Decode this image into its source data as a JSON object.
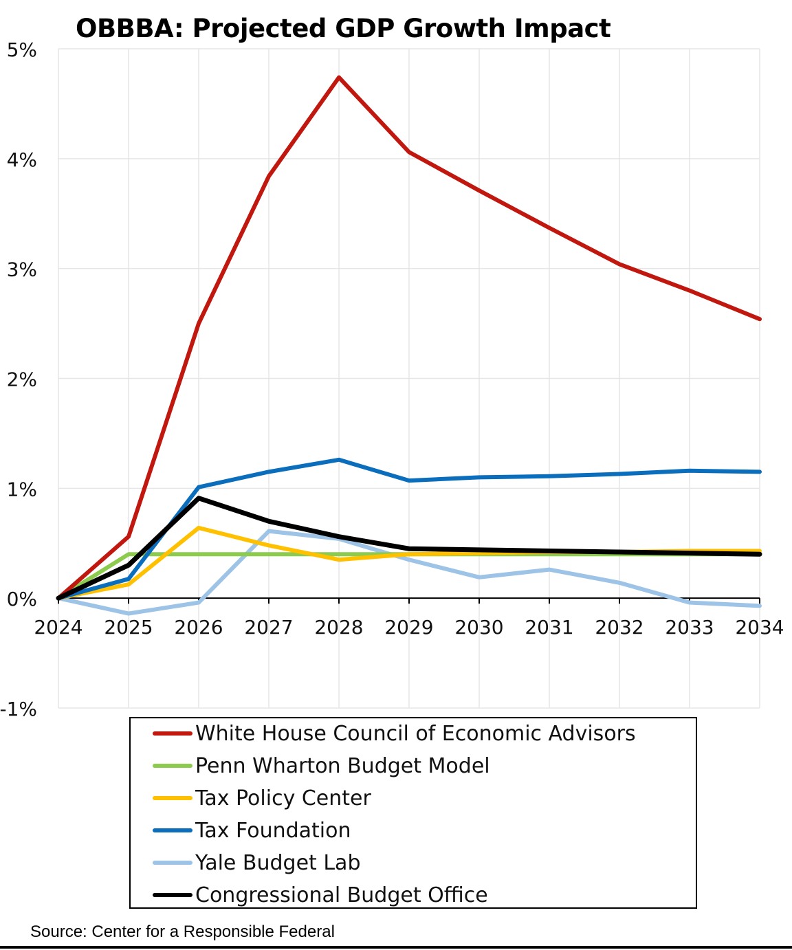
{
  "chart_data": {
    "type": "line",
    "title": "OBBBA: Projected GDP Growth Impact",
    "xlabel": "",
    "ylabel": "",
    "x": [
      2024,
      2025,
      2026,
      2027,
      2028,
      2029,
      2030,
      2031,
      2032,
      2033,
      2034
    ],
    "x_tick_labels": [
      "2024",
      "2025",
      "2026",
      "2027",
      "2028",
      "2029",
      "2030",
      "2031",
      "2032",
      "2033",
      "2034"
    ],
    "ylim": [
      -1,
      5
    ],
    "y_ticks": [
      -1,
      0,
      1,
      2,
      3,
      4,
      5
    ],
    "y_tick_labels": [
      "-1%",
      "0%",
      "1%",
      "2%",
      "3%",
      "4%",
      "5%"
    ],
    "grid": true,
    "legend_position": "bottom",
    "series": [
      {
        "name": "White House Council of Economic Advisors",
        "color": "#C0170F",
        "values": [
          0,
          0.56,
          2.5,
          3.84,
          4.74,
          4.06,
          3.71,
          3.37,
          3.04,
          2.8,
          2.54
        ]
      },
      {
        "name": "Penn Wharton Budget Model",
        "color": "#8DCB4E",
        "values": [
          0,
          0.4,
          0.4,
          0.4,
          0.4,
          0.4,
          0.4,
          0.4,
          0.4,
          0.4,
          0.4
        ]
      },
      {
        "name": "Tax Policy Center",
        "color": "#FFC000",
        "values": [
          0,
          0.125,
          0.64,
          0.48,
          0.35,
          0.4,
          0.41,
          0.42,
          0.42,
          0.43,
          0.43
        ]
      },
      {
        "name": "Tax Foundation",
        "color": "#0A6EBD",
        "values": [
          0,
          0.175,
          1.01,
          1.15,
          1.26,
          1.07,
          1.1,
          1.11,
          1.13,
          1.16,
          1.15
        ]
      },
      {
        "name": "Yale Budget Lab",
        "color": "#9DC3E6",
        "values": [
          0,
          -0.14,
          -0.04,
          0.61,
          0.54,
          0.35,
          0.19,
          0.26,
          0.14,
          -0.04,
          -0.07
        ]
      },
      {
        "name": "Congressional Budget Office",
        "color": "#000000",
        "values": [
          0,
          0.3,
          0.91,
          0.7,
          0.56,
          0.45,
          0.44,
          0.43,
          0.42,
          0.41,
          0.4
        ]
      }
    ]
  },
  "source": "Source: Center for a Responsible Federal"
}
